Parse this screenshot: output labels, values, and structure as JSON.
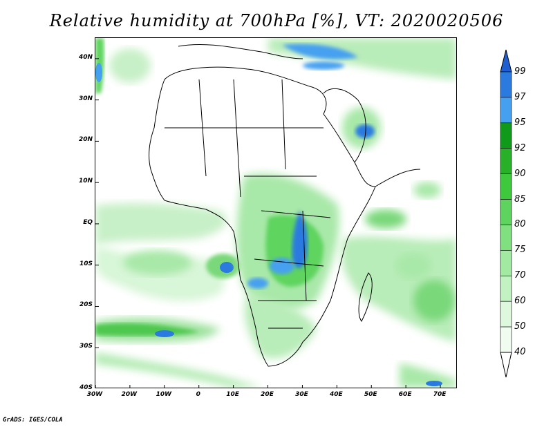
{
  "title": "Relative humidity at 700hPa [%], VT: 2020020506",
  "credit": "GrADS: IGES/COLA",
  "map": {
    "lon_range": [
      -30,
      75
    ],
    "lat_range": [
      -40,
      45
    ],
    "lat_ticks": [
      {
        "value": 40,
        "label": "40N"
      },
      {
        "value": 30,
        "label": "30N"
      },
      {
        "value": 20,
        "label": "20N"
      },
      {
        "value": 10,
        "label": "10N"
      },
      {
        "value": 0,
        "label": "EQ"
      },
      {
        "value": -10,
        "label": "10S"
      },
      {
        "value": -20,
        "label": "20S"
      },
      {
        "value": -30,
        "label": "30S"
      },
      {
        "value": -40,
        "label": "40S"
      }
    ],
    "lon_ticks": [
      {
        "value": -30,
        "label": "30W"
      },
      {
        "value": -20,
        "label": "20W"
      },
      {
        "value": -10,
        "label": "10W"
      },
      {
        "value": 0,
        "label": "0"
      },
      {
        "value": 10,
        "label": "10E"
      },
      {
        "value": 20,
        "label": "20E"
      },
      {
        "value": 30,
        "label": "30E"
      },
      {
        "value": 40,
        "label": "40E"
      },
      {
        "value": 50,
        "label": "50E"
      },
      {
        "value": 60,
        "label": "60E"
      },
      {
        "value": 70,
        "label": "70E"
      }
    ]
  },
  "colorbar": {
    "levels": [
      {
        "label": "99",
        "color": "#1f5fd0"
      },
      {
        "label": "97",
        "color": "#2a7ae0"
      },
      {
        "label": "95",
        "color": "#46a0f0"
      },
      {
        "label": "92",
        "color": "#0f9a1a"
      },
      {
        "label": "90",
        "color": "#28b028"
      },
      {
        "label": "85",
        "color": "#3ec83e"
      },
      {
        "label": "80",
        "color": "#5ed45e"
      },
      {
        "label": "75",
        "color": "#80e080"
      },
      {
        "label": "70",
        "color": "#a2eaa2"
      },
      {
        "label": "60",
        "color": "#c2f2c2"
      },
      {
        "label": "50",
        "color": "#ddf8dd"
      },
      {
        "label": "40",
        "color": "#f0fcf0"
      }
    ],
    "extend_top_color": "#1f5fd0",
    "extend_bottom_color": "#ffffff"
  }
}
